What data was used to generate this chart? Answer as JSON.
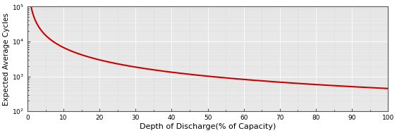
{
  "title": "",
  "xlabel": "Depth of Discharge(% of Capacity)",
  "ylabel": "Expected Average Cycles",
  "xlim": [
    0,
    100
  ],
  "ylim": [
    100.0,
    100000.0
  ],
  "xticks": [
    0,
    10,
    20,
    30,
    40,
    50,
    60,
    70,
    80,
    90,
    100
  ],
  "yticks": [
    100.0,
    1000.0,
    10000.0,
    100000.0
  ],
  "line_color": "#cc0000",
  "line_width": 1.5,
  "background_color": "#ffffff",
  "axes_face_color": "#e8e8e8",
  "grid_major_color": "#ffffff",
  "grid_minor_color": "#cccccc",
  "x_start": 0.05,
  "x_end": 100,
  "curve_A": 100000,
  "curve_k": 1.2,
  "tick_fontsize": 6.5,
  "xlabel_fontsize": 8,
  "ylabel_fontsize": 7.5
}
